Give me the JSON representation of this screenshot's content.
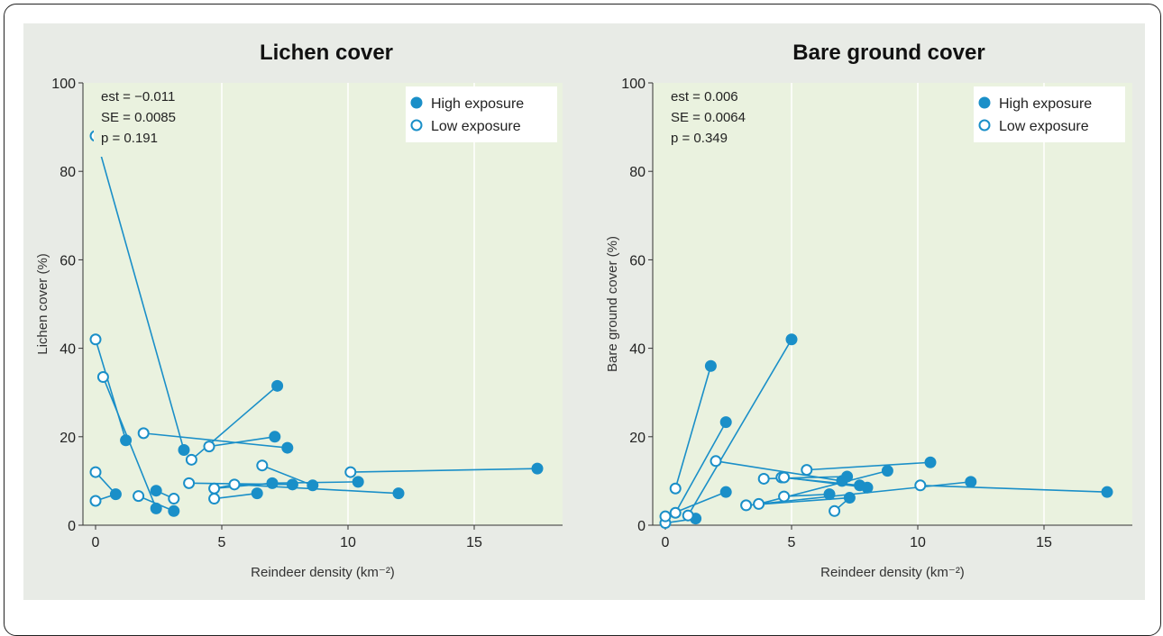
{
  "colors": {
    "series": "#1a8fc8",
    "plot_bg": "#eaf2df",
    "panel_bg": "#e8ebe6",
    "grid": "#ffffff"
  },
  "chart_data": [
    {
      "type": "scatter",
      "title": "Lichen cover",
      "xlabel": "Reindeer density (km⁻²)",
      "ylabel": "Lichen cover (%)",
      "xlim": [
        -0.5,
        18.5
      ],
      "ylim": [
        0,
        100
      ],
      "xticks": [
        "0",
        "5",
        "10",
        "15"
      ],
      "yticks": [
        "0",
        "20",
        "40",
        "60",
        "80",
        "100"
      ],
      "grid": "vertical",
      "legend_position": "top-right",
      "stats": [
        "est =  −0.011",
        "SE =  0.0085",
        "p =  0.191"
      ],
      "legend": [
        "High exposure",
        "Low exposure"
      ],
      "series": [
        {
          "name": "High exposure",
          "points": [
            [
              3.5,
              17
            ],
            [
              7.2,
              31.5
            ],
            [
              7.1,
              20
            ],
            [
              7.6,
              17.5
            ],
            [
              1.2,
              19.2
            ],
            [
              0.8,
              7
            ],
            [
              2.4,
              7.8
            ],
            [
              2.4,
              3.8
            ],
            [
              3.1,
              3.2
            ],
            [
              6.4,
              7.2
            ],
            [
              7.0,
              9.5
            ],
            [
              8.6,
              9
            ],
            [
              7.8,
              9.2
            ],
            [
              10.4,
              9.8
            ],
            [
              12.0,
              7.2
            ],
            [
              17.5,
              12.8
            ]
          ]
        },
        {
          "name": "Low exposure",
          "points": [
            [
              0,
              88
            ],
            [
              0,
              42
            ],
            [
              0.3,
              33.5
            ],
            [
              0,
              12
            ],
            [
              0,
              5.5
            ],
            [
              1.7,
              6.6
            ],
            [
              1.9,
              20.8
            ],
            [
              3.1,
              6
            ],
            [
              3.7,
              9.5
            ],
            [
              3.8,
              14.8
            ],
            [
              4.5,
              17.8
            ],
            [
              4.7,
              8.3
            ],
            [
              4.7,
              6
            ],
            [
              5.5,
              9.2
            ],
            [
              6.6,
              13.5
            ],
            [
              10.1,
              12
            ]
          ]
        }
      ],
      "connections": [
        [
          [
            0,
            88
          ],
          [
            3.5,
            17
          ]
        ],
        [
          [
            3.8,
            14.8
          ],
          [
            7.2,
            31.5
          ]
        ],
        [
          [
            4.5,
            17.8
          ],
          [
            7.1,
            20
          ]
        ],
        [
          [
            1.9,
            20.8
          ],
          [
            7.6,
            17.5
          ]
        ],
        [
          [
            0,
            42
          ],
          [
            1.2,
            19.2
          ]
        ],
        [
          [
            0.3,
            33.5
          ],
          [
            2.4,
            3.8
          ]
        ],
        [
          [
            0,
            12
          ],
          [
            0.8,
            7
          ]
        ],
        [
          [
            0,
            5.5
          ],
          [
            0.8,
            7
          ]
        ],
        [
          [
            1.7,
            6.6
          ],
          [
            3.1,
            3.2
          ]
        ],
        [
          [
            3.1,
            6
          ],
          [
            2.4,
            7.8
          ]
        ],
        [
          [
            4.7,
            6
          ],
          [
            6.4,
            7.2
          ]
        ],
        [
          [
            3.7,
            9.5
          ],
          [
            7.8,
            9.2
          ]
        ],
        [
          [
            5.5,
            9.2
          ],
          [
            4.7,
            8.3
          ]
        ],
        [
          [
            4.7,
            8.3
          ],
          [
            7.0,
            9.5
          ]
        ],
        [
          [
            6.6,
            13.5
          ],
          [
            8.6,
            9
          ]
        ],
        [
          [
            5.5,
            9.2
          ],
          [
            12.0,
            7.2
          ]
        ],
        [
          [
            7.0,
            9.5
          ],
          [
            10.4,
            9.8
          ]
        ],
        [
          [
            10.1,
            12
          ],
          [
            17.5,
            12.8
          ]
        ]
      ]
    },
    {
      "type": "scatter",
      "title": "Bare ground cover",
      "xlabel": "Reindeer density (km⁻²)",
      "ylabel": "Bare ground cover (%)",
      "xlim": [
        -0.5,
        18.5
      ],
      "ylim": [
        0,
        100
      ],
      "xticks": [
        "0",
        "5",
        "10",
        "15"
      ],
      "yticks": [
        "0",
        "20",
        "40",
        "60",
        "80",
        "100"
      ],
      "grid": "vertical",
      "legend_position": "top-right",
      "stats": [
        "est =  0.006",
        "SE =  0.0064",
        "p =  0.349"
      ],
      "legend": [
        "High exposure",
        "Low exposure"
      ],
      "series": [
        {
          "name": "High exposure",
          "points": [
            [
              1.8,
              36
            ],
            [
              5.0,
              42
            ],
            [
              2.4,
              23.3
            ],
            [
              2.4,
              7.5
            ],
            [
              1.2,
              1.5
            ],
            [
              6.5,
              7
            ],
            [
              7.0,
              10
            ],
            [
              7.2,
              11
            ],
            [
              7.3,
              6.2
            ],
            [
              7.7,
              9
            ],
            [
              8.0,
              8.5
            ],
            [
              8.8,
              12.3
            ],
            [
              10.5,
              14.2
            ],
            [
              12.1,
              9.8
            ],
            [
              17.5,
              7.5
            ]
          ]
        },
        {
          "name": "Low exposure",
          "points": [
            [
              0,
              0.5
            ],
            [
              0,
              2
            ],
            [
              0.4,
              2.8
            ],
            [
              0.4,
              8.3
            ],
            [
              0.9,
              2.2
            ],
            [
              2.0,
              14.5
            ],
            [
              3.2,
              4.5
            ],
            [
              3.7,
              4.8
            ],
            [
              3.9,
              10.5
            ],
            [
              4.6,
              10.8
            ],
            [
              4.7,
              6.5
            ],
            [
              4.7,
              10.8
            ],
            [
              5.6,
              12.5
            ],
            [
              6.7,
              3.2
            ],
            [
              10.1,
              9
            ]
          ]
        }
      ],
      "connections": [
        [
          [
            0.4,
            8.3
          ],
          [
            1.8,
            36
          ]
        ],
        [
          [
            0.9,
            2.2
          ],
          [
            5.0,
            42
          ]
        ],
        [
          [
            0.4,
            2.8
          ],
          [
            2.4,
            23.3
          ]
        ],
        [
          [
            0,
            2
          ],
          [
            2.4,
            7.5
          ]
        ],
        [
          [
            0,
            0.5
          ],
          [
            1.2,
            1.5
          ]
        ],
        [
          [
            2.0,
            14.5
          ],
          [
            7.0,
            10
          ]
        ],
        [
          [
            3.9,
            10.5
          ],
          [
            7.2,
            11
          ]
        ],
        [
          [
            4.6,
            10.8
          ],
          [
            7.7,
            9
          ]
        ],
        [
          [
            4.7,
            10.8
          ],
          [
            8.0,
            8.5
          ]
        ],
        [
          [
            4.7,
            6.5
          ],
          [
            6.5,
            7
          ]
        ],
        [
          [
            3.2,
            4.5
          ],
          [
            7.3,
            6.2
          ]
        ],
        [
          [
            3.7,
            4.8
          ],
          [
            8.8,
            12.3
          ]
        ],
        [
          [
            6.7,
            3.2
          ],
          [
            7.3,
            6.2
          ]
        ],
        [
          [
            5.6,
            12.5
          ],
          [
            10.5,
            14.2
          ]
        ],
        [
          [
            3.7,
            4.8
          ],
          [
            12.1,
            9.8
          ]
        ],
        [
          [
            10.1,
            9
          ],
          [
            17.5,
            7.5
          ]
        ]
      ]
    }
  ]
}
